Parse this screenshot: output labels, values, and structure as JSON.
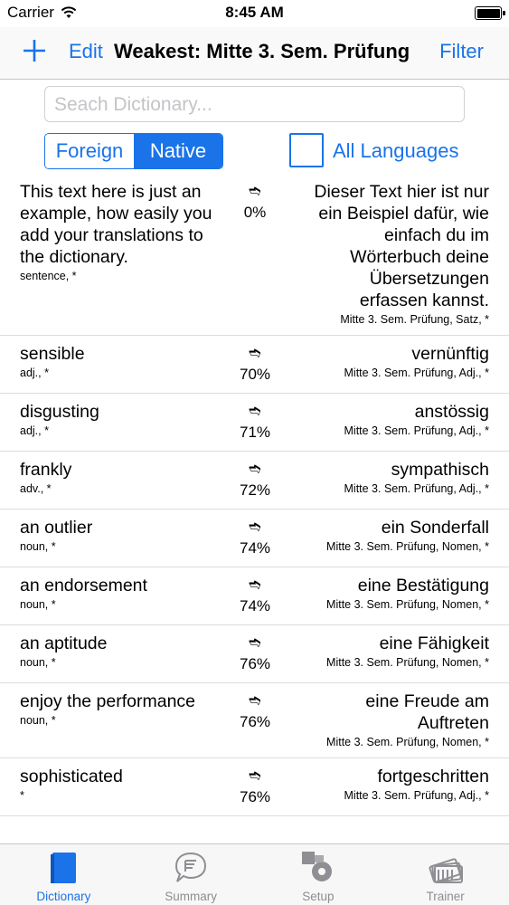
{
  "status": {
    "carrier": "Carrier",
    "time": "8:45 AM"
  },
  "nav": {
    "edit": "Edit",
    "title": "Weakest: Mitte 3. Sem. Prüfung",
    "filter": "Filter"
  },
  "search": {
    "placeholder": "Seach Dictionary..."
  },
  "segment": {
    "foreign": "Foreign",
    "native": "Native",
    "selected": "Native"
  },
  "languages": {
    "label": "All Languages",
    "checked": false
  },
  "arrow_glyph": "➬",
  "rows": [
    {
      "foreign": [
        "This text here is just an",
        "example, how easily you",
        "add your translations to",
        "the dictionary."
      ],
      "foreign_meta": "sentence, *",
      "percent": "0%",
      "native": [
        "Dieser Text hier ist nur",
        "ein Beispiel dafür, wie",
        "einfach du im",
        "Wörterbuch deine",
        "Übersetzungen",
        "erfassen kannst."
      ],
      "native_meta": "Mitte 3. Sem. Prüfung, Satz, *"
    },
    {
      "foreign": [
        "sensible"
      ],
      "foreign_meta": "adj., *",
      "percent": "70%",
      "native": [
        "vernünftig"
      ],
      "native_meta": "Mitte 3. Sem. Prüfung, Adj., *"
    },
    {
      "foreign": [
        "disgusting"
      ],
      "foreign_meta": "adj., *",
      "percent": "71%",
      "native": [
        "anstössig"
      ],
      "native_meta": "Mitte 3. Sem. Prüfung, Adj., *"
    },
    {
      "foreign": [
        "frankly"
      ],
      "foreign_meta": "adv., *",
      "percent": "72%",
      "native": [
        "sympathisch"
      ],
      "native_meta": "Mitte 3. Sem. Prüfung, Adj., *"
    },
    {
      "foreign": [
        "an outlier"
      ],
      "foreign_meta": "noun, *",
      "percent": "74%",
      "native": [
        "ein Sonderfall"
      ],
      "native_meta": "Mitte 3. Sem. Prüfung, Nomen, *"
    },
    {
      "foreign": [
        "an endorsement"
      ],
      "foreign_meta": "noun, *",
      "percent": "74%",
      "native": [
        "eine Bestätigung"
      ],
      "native_meta": "Mitte 3. Sem. Prüfung, Nomen, *"
    },
    {
      "foreign": [
        "an aptitude"
      ],
      "foreign_meta": "noun, *",
      "percent": "76%",
      "native": [
        "eine Fähigkeit"
      ],
      "native_meta": "Mitte 3. Sem. Prüfung, Nomen, *"
    },
    {
      "foreign": [
        "enjoy the performance"
      ],
      "foreign_meta": "noun, *",
      "percent": "76%",
      "native": [
        "eine Freude am",
        "Auftreten"
      ],
      "native_meta": "Mitte 3. Sem. Prüfung, Nomen, *"
    },
    {
      "foreign": [
        "sophisticated"
      ],
      "foreign_meta": "*",
      "percent": "76%",
      "native": [
        "fortgeschritten"
      ],
      "native_meta": "Mitte 3. Sem. Prüfung, Adj., *"
    }
  ],
  "tabs": [
    {
      "label": "Dictionary",
      "icon": "book-icon",
      "active": true
    },
    {
      "label": "Summary",
      "icon": "speech-bubble-icon",
      "active": false
    },
    {
      "label": "Setup",
      "icon": "gears-icon",
      "active": false
    },
    {
      "label": "Trainer",
      "icon": "cards-icon",
      "active": false
    }
  ],
  "colors": {
    "accent": "#1a73e8",
    "separator": "#dcdcdc",
    "tab_inactive": "#8e8e93"
  }
}
